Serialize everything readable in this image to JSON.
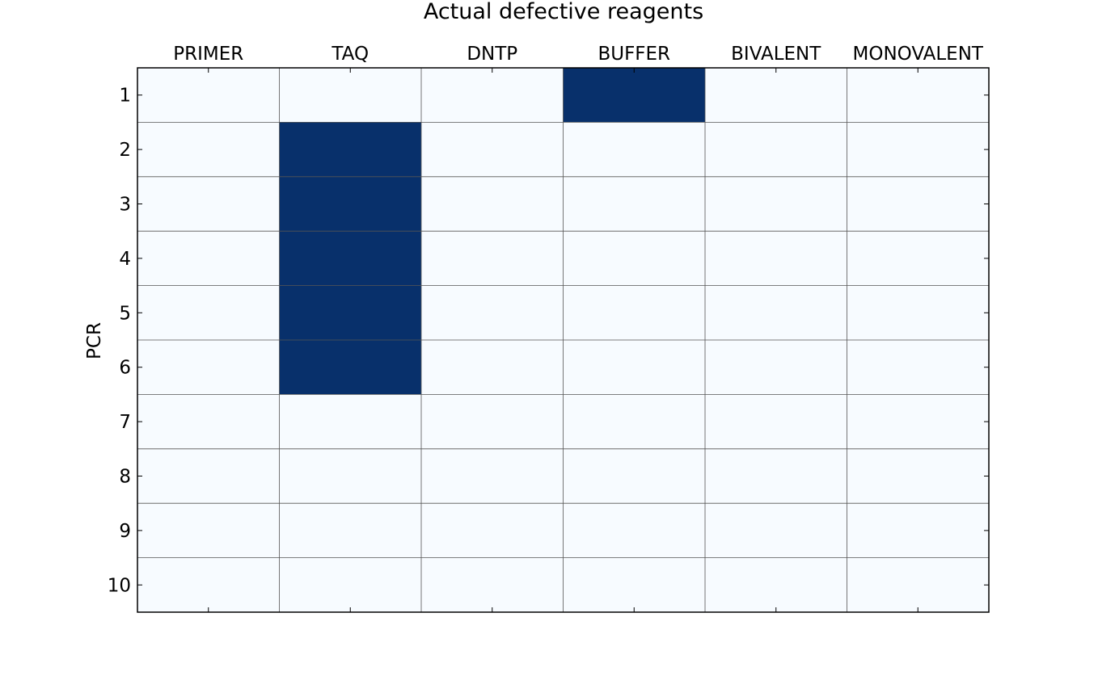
{
  "chart_data": {
    "type": "heatmap",
    "title": "Actual defective reagents",
    "xlabel": "",
    "ylabel": "PCR",
    "columns": [
      "PRIMER",
      "TAQ",
      "DNTP",
      "BUFFER",
      "BIVALENT",
      "MONOVALENT"
    ],
    "rows": [
      "1",
      "2",
      "3",
      "4",
      "5",
      "6",
      "7",
      "8",
      "9",
      "10"
    ],
    "values": [
      [
        0,
        0,
        0,
        1,
        0,
        0
      ],
      [
        0,
        1,
        0,
        0,
        0,
        0
      ],
      [
        0,
        1,
        0,
        0,
        0,
        0
      ],
      [
        0,
        1,
        0,
        0,
        0,
        0
      ],
      [
        0,
        1,
        0,
        0,
        0,
        0
      ],
      [
        0,
        1,
        0,
        0,
        0,
        0
      ],
      [
        0,
        0,
        0,
        0,
        0,
        0
      ],
      [
        0,
        0,
        0,
        0,
        0,
        0
      ],
      [
        0,
        0,
        0,
        0,
        0,
        0
      ],
      [
        0,
        0,
        0,
        0,
        0,
        0
      ]
    ],
    "colormap": {
      "low": "#f7fbff",
      "high": "#08306b"
    },
    "grid": true,
    "legend": "none"
  }
}
